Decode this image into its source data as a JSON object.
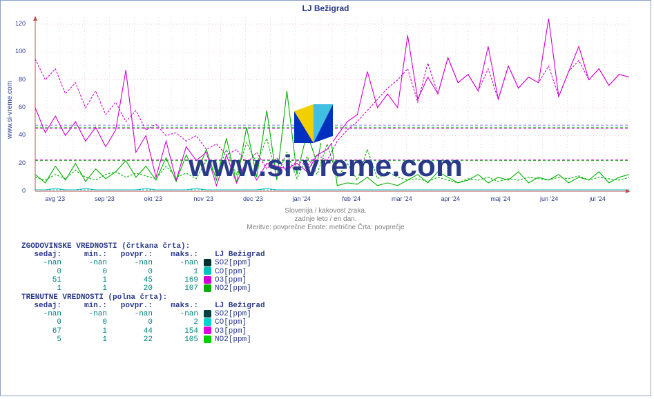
{
  "title": "LJ Bežigrad",
  "source_label": "www.si-vreme.com",
  "watermark": "www.si-vreme.com",
  "subtitle1": "Slovenija / kakovost zraka.",
  "subtitle2": "zadnje leto / en dan.",
  "subtitle3": "Meritve: povprečne  Enote: metrične  Črta: povprečje",
  "chart": {
    "type": "line",
    "background": "#ffffff",
    "axis_color": "#c0504d",
    "grid_dash": "1 3",
    "grid_color_minor": "#e6b0b0",
    "grid_color_major": "#e07070",
    "ylim": [
      0,
      125
    ],
    "yticks": [
      0,
      20,
      40,
      60,
      80,
      100,
      120
    ],
    "xticks": [
      "avg '23",
      "sep '23",
      "okt '23",
      "nov '23",
      "dec '23",
      "jan '24",
      "feb '24",
      "mar '24",
      "apr '24",
      "maj '24",
      "jun '24",
      "jul '24"
    ],
    "ref_lines_dashed": [
      {
        "y": 22,
        "color": "#00b000"
      },
      {
        "y": 22.5,
        "color": "#d000d0"
      },
      {
        "y": 45,
        "color": "#d000d0"
      },
      {
        "y": 46,
        "color": "#00b000"
      },
      {
        "y": 47.5,
        "color": "#7070ff"
      }
    ],
    "series": [
      {
        "name": "CO_hist",
        "color": "#00c0c0",
        "dash": "3 2",
        "y": [
          1,
          1,
          1,
          1,
          1,
          1,
          1,
          1,
          1,
          1,
          1,
          1,
          1,
          1,
          1,
          1,
          1,
          1,
          1,
          1,
          1,
          1,
          1,
          1,
          1,
          1,
          1,
          1,
          1,
          1,
          1,
          1,
          1,
          1,
          1,
          1,
          1,
          1,
          1,
          1,
          1,
          1,
          1,
          1,
          1,
          1,
          1,
          1,
          1,
          1,
          1,
          1,
          1,
          1,
          1,
          1,
          1,
          1,
          1,
          1
        ]
      },
      {
        "name": "CO_curr",
        "color": "#00c0c0",
        "dash": "",
        "y": [
          1,
          1,
          2,
          1,
          1,
          2,
          1,
          1,
          1,
          1,
          1,
          2,
          1,
          1,
          1,
          1,
          2,
          1,
          1,
          1,
          1,
          1,
          1,
          2,
          1,
          1,
          1,
          1,
          1,
          1,
          1,
          1,
          1,
          1,
          1,
          1,
          1,
          1,
          1,
          1,
          1,
          1,
          1,
          1,
          1,
          1,
          1,
          1,
          1,
          1,
          1,
          1,
          1,
          1,
          1,
          1,
          1,
          1,
          1,
          1
        ]
      },
      {
        "name": "NO2_hist",
        "color": "#00b000",
        "dash": "3 2",
        "y": [
          10,
          8,
          12,
          9,
          15,
          10,
          8,
          12,
          14,
          10,
          13,
          11,
          9,
          18,
          10,
          13,
          9,
          22,
          11,
          30,
          12,
          35,
          20,
          38,
          10,
          28,
          9,
          25,
          12,
          34,
          10,
          20,
          8,
          30,
          9,
          14,
          10,
          8,
          9,
          7,
          10,
          8,
          6,
          9,
          8,
          10,
          7,
          9,
          8,
          10,
          9,
          8,
          10,
          9,
          11,
          8,
          10,
          9,
          8,
          10
        ]
      },
      {
        "name": "NO2_curr",
        "color": "#00b000",
        "dash": "",
        "y": [
          12,
          6,
          18,
          8,
          20,
          7,
          16,
          9,
          14,
          22,
          10,
          18,
          8,
          24,
          7,
          26,
          12,
          30,
          8,
          38,
          6,
          46,
          10,
          58,
          8,
          72,
          12,
          42,
          20,
          58,
          4,
          6,
          5,
          10,
          4,
          6,
          4,
          8,
          12,
          6,
          14,
          10,
          6,
          8,
          12,
          6,
          10,
          8,
          14,
          6,
          10,
          8,
          12,
          6,
          10,
          8,
          14,
          6,
          10,
          12
        ]
      },
      {
        "name": "O3_hist",
        "color": "#d000d0",
        "dash": "3 2",
        "y": [
          95,
          80,
          88,
          70,
          78,
          60,
          72,
          55,
          64,
          50,
          58,
          44,
          48,
          40,
          42,
          36,
          40,
          30,
          34,
          26,
          30,
          20,
          28,
          16,
          24,
          14,
          22,
          18,
          26,
          22,
          36,
          44,
          50,
          58,
          66,
          74,
          80,
          88,
          64,
          92,
          70,
          96,
          78,
          84,
          72,
          88,
          66,
          90,
          74,
          82,
          78,
          90,
          68,
          86,
          94,
          80,
          88,
          76,
          84,
          82
        ]
      },
      {
        "name": "O3_curr",
        "color": "#d000d0",
        "dash": "",
        "y": [
          60,
          42,
          54,
          40,
          50,
          36,
          46,
          32,
          44,
          87,
          28,
          40,
          10,
          36,
          8,
          32,
          22,
          28,
          4,
          26,
          6,
          22,
          8,
          20,
          18,
          16,
          20,
          14,
          26,
          30,
          40,
          50,
          55,
          86,
          60,
          70,
          60,
          112,
          66,
          82,
          70,
          96,
          78,
          84,
          72,
          104,
          66,
          90,
          74,
          82,
          78,
          124,
          68,
          86,
          104,
          80,
          88,
          76,
          84,
          82
        ]
      }
    ]
  },
  "tables": {
    "historic": {
      "title": "ZGODOVINSKE VREDNOSTI (črtkana črta):",
      "columns": [
        "sedaj:",
        "min.:",
        "povpr.:",
        "maks.:"
      ],
      "station": "LJ Bežigrad",
      "rows": [
        {
          "vals": [
            "-nan",
            "-nan",
            "-nan",
            "-nan"
          ],
          "label": "SO2[ppm]",
          "color": "#003030"
        },
        {
          "vals": [
            "0",
            "0",
            "0",
            "1"
          ],
          "label": "CO[ppm]",
          "color": "#00c0c0"
        },
        {
          "vals": [
            "51",
            "1",
            "45",
            "169"
          ],
          "label": "O3[ppm]",
          "color": "#d000d0"
        },
        {
          "vals": [
            "1",
            "1",
            "20",
            "107"
          ],
          "label": "NO2[ppm]",
          "color": "#00b000"
        }
      ]
    },
    "current": {
      "title": "TRENUTNE VREDNOSTI (polna črta):",
      "columns": [
        "sedaj:",
        "min.:",
        "povpr.:",
        "maks.:"
      ],
      "station": "LJ Bežigrad",
      "rows": [
        {
          "vals": [
            "-nan",
            "-nan",
            "-nan",
            "-nan"
          ],
          "label": "SO2[ppm]",
          "color": "#004040"
        },
        {
          "vals": [
            "0",
            "0",
            "0",
            "2"
          ],
          "label": "CO[ppm]",
          "color": "#00d0d0"
        },
        {
          "vals": [
            "67",
            "1",
            "44",
            "154"
          ],
          "label": "O3[ppm]",
          "color": "#e000e0"
        },
        {
          "vals": [
            "5",
            "1",
            "22",
            "105"
          ],
          "label": "NO2[ppm]",
          "color": "#00d000"
        }
      ]
    }
  }
}
